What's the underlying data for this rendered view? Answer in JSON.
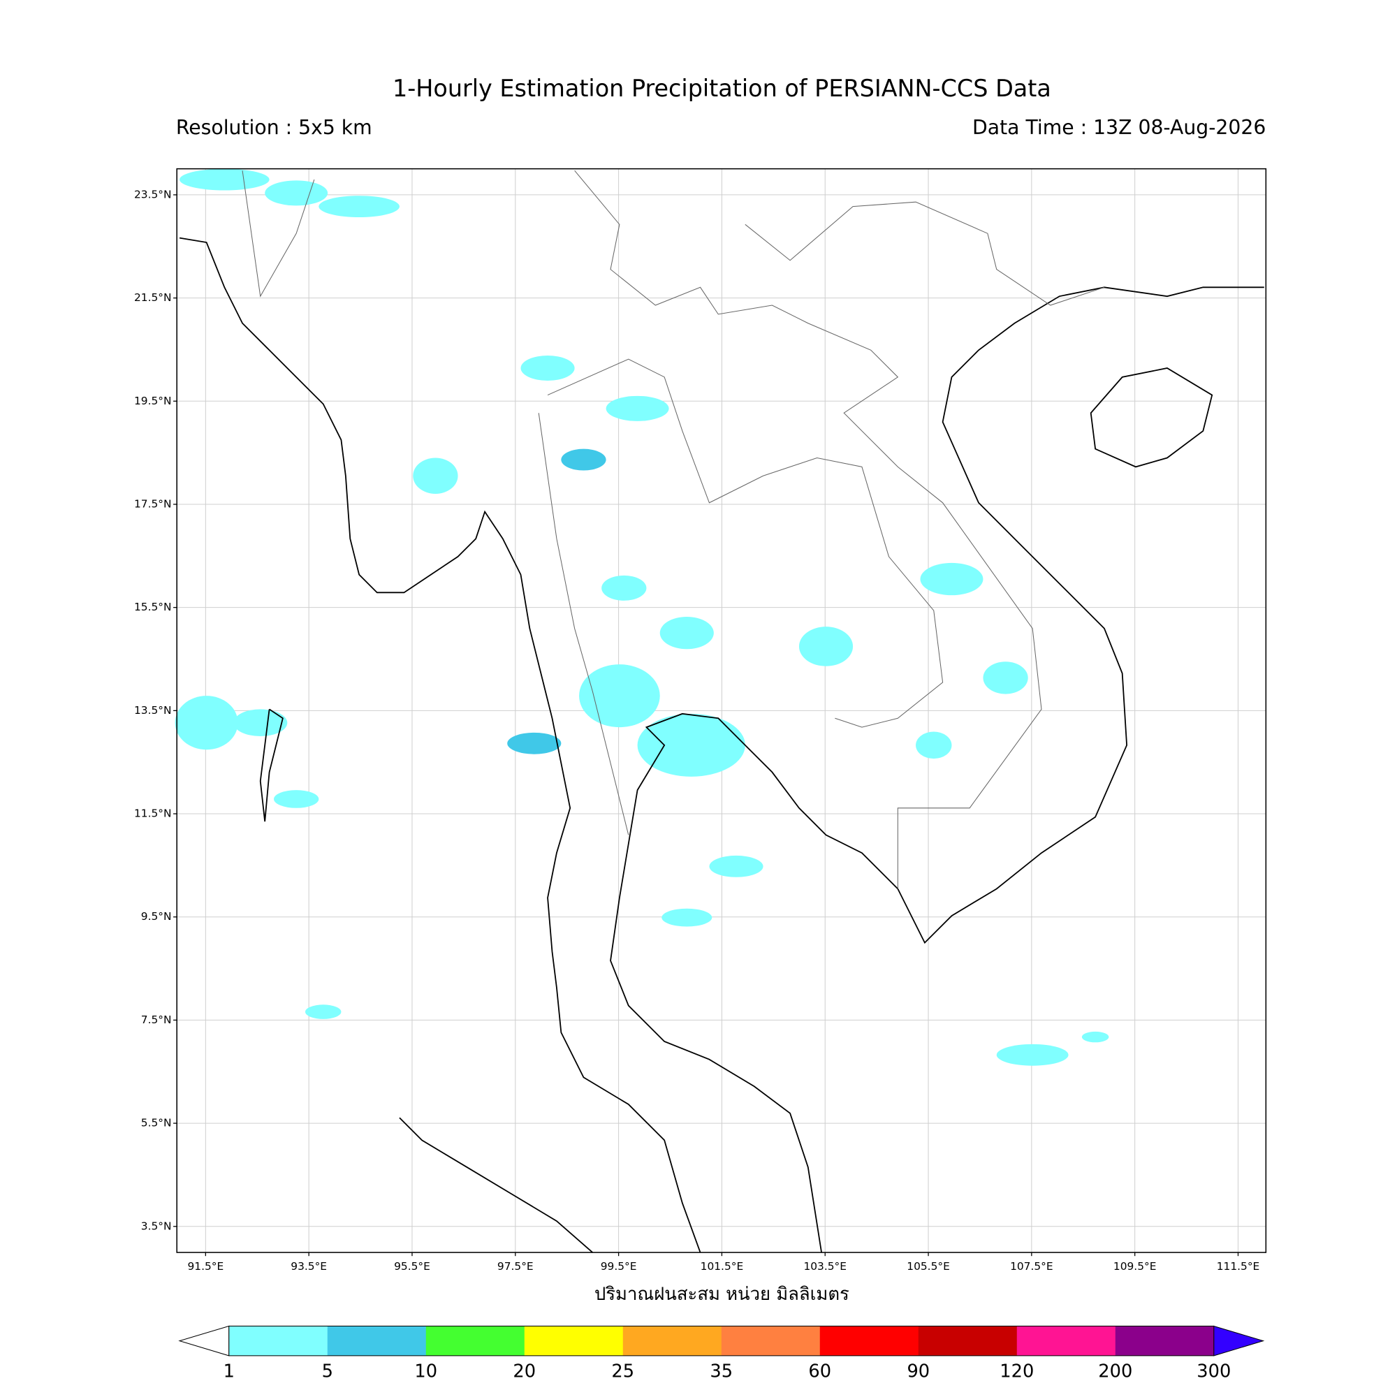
{
  "title": "1-Hourly Estimation Precipitation of PERSIANN-CCS Data",
  "subtitle_left": "Resolution : 5x5 km",
  "subtitle_right": "Data Time : 13Z 08-Aug-2026",
  "map": {
    "lat_ticks": [
      "23.5°N",
      "21.5°N",
      "19.5°N",
      "17.5°N",
      "15.5°N",
      "13.5°N",
      "11.5°N",
      "9.5°N",
      "7.5°N",
      "5.5°N",
      "3.5°N"
    ],
    "lon_ticks": [
      "91.5°E",
      "93.5°E",
      "95.5°E",
      "97.5°E",
      "99.5°E",
      "101.5°E",
      "103.5°E",
      "105.5°E",
      "107.5°E",
      "109.5°E",
      "111.5°E"
    ],
    "xlabel": "ปริมาณฝนสะสม หน่วย มิลลิเมตร"
  },
  "colorbar": {
    "levels": [
      1,
      5,
      10,
      20,
      25,
      35,
      60,
      90,
      120,
      200,
      300
    ],
    "colors": [
      "#80ffff",
      "#40c8e8",
      "#44ff30",
      "#ffff00",
      "#ffa820",
      "#ff8040",
      "#ff0000",
      "#c80000",
      "#ff1493",
      "#8b008b"
    ],
    "under_color": "#ffffff",
    "over_color": "#3300ff"
  }
}
